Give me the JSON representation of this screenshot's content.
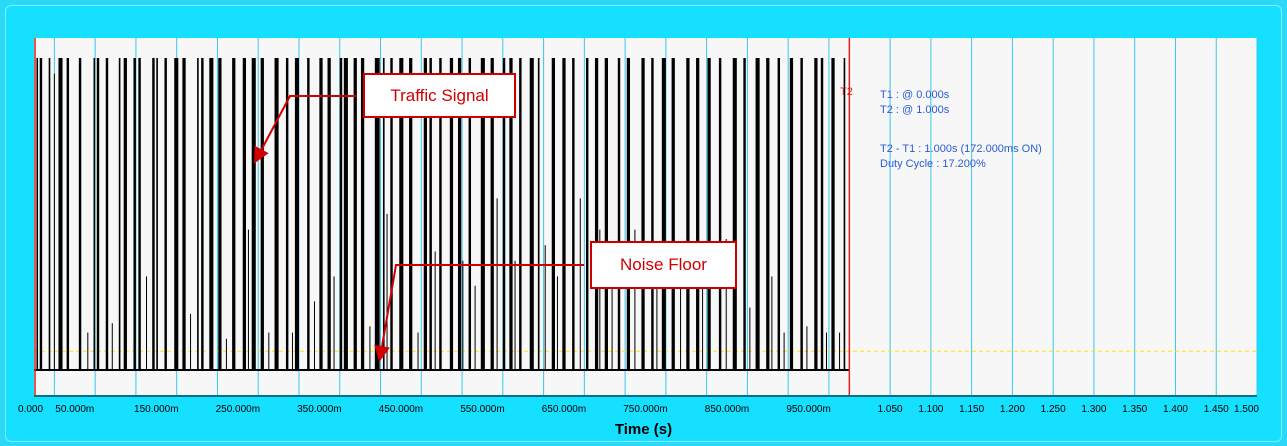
{
  "chart_data": {
    "type": "line",
    "xlabel": "Time (s)",
    "x_tick_labels": [
      "0.000",
      "50.000m",
      "150.000m",
      "250.000m",
      "350.000m",
      "450.000m",
      "550.000m",
      "650.000m",
      "750.000m",
      "850.000m",
      "950.000m",
      "1.050",
      "1.100",
      "1.150",
      "1.200",
      "1.250",
      "1.300",
      "1.350",
      "1.400",
      "1.450",
      "1.500"
    ],
    "xlim": [
      0,
      1.5
    ],
    "signal_span_s": [
      0,
      1.0
    ],
    "grid": true,
    "cursors": {
      "t1_tag": "T1",
      "t2_tag": "T2",
      "t1_s": 0.0,
      "t2_s": 1.0
    },
    "noise_floor_level": 0.06,
    "series": [
      {
        "color": "#000000",
        "pulses_s": [
          [
            0.003,
            0.004
          ],
          [
            0.007,
            0.01
          ],
          [
            0.018,
            0.02
          ],
          [
            0.03,
            0.035
          ],
          [
            0.04,
            0.043
          ],
          [
            0.055,
            0.058
          ],
          [
            0.073,
            0.075
          ],
          [
            0.077,
            0.08
          ],
          [
            0.088,
            0.091
          ],
          [
            0.104,
            0.106
          ],
          [
            0.11,
            0.114
          ],
          [
            0.122,
            0.125
          ],
          [
            0.128,
            0.131
          ],
          [
            0.145,
            0.148
          ],
          [
            0.15,
            0.152
          ],
          [
            0.16,
            0.163
          ],
          [
            0.172,
            0.177
          ],
          [
            0.182,
            0.186
          ],
          [
            0.2,
            0.202
          ],
          [
            0.205,
            0.208
          ],
          [
            0.215,
            0.22
          ],
          [
            0.226,
            0.23
          ],
          [
            0.243,
            0.247
          ],
          [
            0.256,
            0.26
          ],
          [
            0.267,
            0.272
          ],
          [
            0.278,
            0.282
          ],
          [
            0.295,
            0.3
          ],
          [
            0.309,
            0.312
          ],
          [
            0.32,
            0.325
          ],
          [
            0.335,
            0.338
          ],
          [
            0.35,
            0.354
          ],
          [
            0.36,
            0.364
          ],
          [
            0.375,
            0.378
          ],
          [
            0.38,
            0.385
          ],
          [
            0.392,
            0.396
          ],
          [
            0.401,
            0.405
          ],
          [
            0.418,
            0.424
          ],
          [
            0.428,
            0.43
          ],
          [
            0.437,
            0.44
          ],
          [
            0.448,
            0.453
          ],
          [
            0.46,
            0.464
          ],
          [
            0.478,
            0.482
          ],
          [
            0.485,
            0.488
          ],
          [
            0.497,
            0.5
          ],
          [
            0.51,
            0.514
          ],
          [
            0.52,
            0.524
          ],
          [
            0.533,
            0.536
          ],
          [
            0.548,
            0.553
          ],
          [
            0.56,
            0.564
          ],
          [
            0.575,
            0.578
          ],
          [
            0.583,
            0.587
          ],
          [
            0.595,
            0.598
          ],
          [
            0.608,
            0.613
          ],
          [
            0.618,
            0.62
          ],
          [
            0.635,
            0.639
          ],
          [
            0.648,
            0.652
          ],
          [
            0.66,
            0.663
          ],
          [
            0.677,
            0.68
          ],
          [
            0.688,
            0.692
          ],
          [
            0.7,
            0.704
          ],
          [
            0.716,
            0.719
          ],
          [
            0.727,
            0.731
          ],
          [
            0.745,
            0.749
          ],
          [
            0.757,
            0.76
          ],
          [
            0.77,
            0.775
          ],
          [
            0.782,
            0.786
          ],
          [
            0.8,
            0.804
          ],
          [
            0.812,
            0.816
          ],
          [
            0.826,
            0.83
          ],
          [
            0.84,
            0.843
          ],
          [
            0.857,
            0.862
          ],
          [
            0.87,
            0.873
          ],
          [
            0.885,
            0.89
          ],
          [
            0.898,
            0.902
          ],
          [
            0.912,
            0.915
          ],
          [
            0.927,
            0.931
          ],
          [
            0.94,
            0.943
          ],
          [
            0.957,
            0.961
          ],
          [
            0.965,
            0.968
          ],
          [
            0.978,
            0.982
          ],
          [
            0.993,
            0.995
          ]
        ],
        "spikes_s": [
          {
            "t": 0.025,
            "h": 0.95
          },
          {
            "t": 0.066,
            "h": 0.12
          },
          {
            "t": 0.096,
            "h": 0.15
          },
          {
            "t": 0.138,
            "h": 0.3
          },
          {
            "t": 0.192,
            "h": 0.18
          },
          {
            "t": 0.236,
            "h": 0.1
          },
          {
            "t": 0.263,
            "h": 0.45
          },
          {
            "t": 0.288,
            "h": 0.12
          },
          {
            "t": 0.317,
            "h": 0.12
          },
          {
            "t": 0.344,
            "h": 0.22
          },
          {
            "t": 0.368,
            "h": 0.3
          },
          {
            "t": 0.412,
            "h": 0.14
          },
          {
            "t": 0.433,
            "h": 0.5
          },
          {
            "t": 0.471,
            "h": 0.12
          },
          {
            "t": 0.492,
            "h": 0.38
          },
          {
            "t": 0.526,
            "h": 0.35
          },
          {
            "t": 0.541,
            "h": 0.27
          },
          {
            "t": 0.568,
            "h": 0.55
          },
          {
            "t": 0.59,
            "h": 0.35
          },
          {
            "t": 0.627,
            "h": 0.4
          },
          {
            "t": 0.642,
            "h": 0.3
          },
          {
            "t": 0.67,
            "h": 0.55
          },
          {
            "t": 0.694,
            "h": 0.45
          },
          {
            "t": 0.709,
            "h": 0.3
          },
          {
            "t": 0.737,
            "h": 0.45
          },
          {
            "t": 0.764,
            "h": 0.3
          },
          {
            "t": 0.793,
            "h": 0.4
          },
          {
            "t": 0.82,
            "h": 0.3
          },
          {
            "t": 0.849,
            "h": 0.42
          },
          {
            "t": 0.878,
            "h": 0.2
          },
          {
            "t": 0.905,
            "h": 0.3
          },
          {
            "t": 0.92,
            "h": 0.12
          },
          {
            "t": 0.948,
            "h": 0.14
          },
          {
            "t": 0.972,
            "h": 0.12
          },
          {
            "t": 0.988,
            "h": 0.12
          }
        ]
      }
    ]
  },
  "readout": {
    "t1": "T1 : @ 0.000s",
    "t2": "T2 : @ 1.000s",
    "delta": "T2 - T1 : 1.000s (172.000ms ON)",
    "duty": "Duty Cycle : 17.200%"
  },
  "annotations": {
    "traffic_signal": "Traffic Signal",
    "noise_floor": "Noise Floor"
  },
  "colors": {
    "frame": "#16e0ff",
    "plot_bg": "#f7f7f7",
    "grid": "#35c8f0",
    "cursor": "#e02020",
    "noise_line": "#ffe800",
    "readout_text": "#2a5bd7",
    "callout_border": "#cc0000"
  }
}
